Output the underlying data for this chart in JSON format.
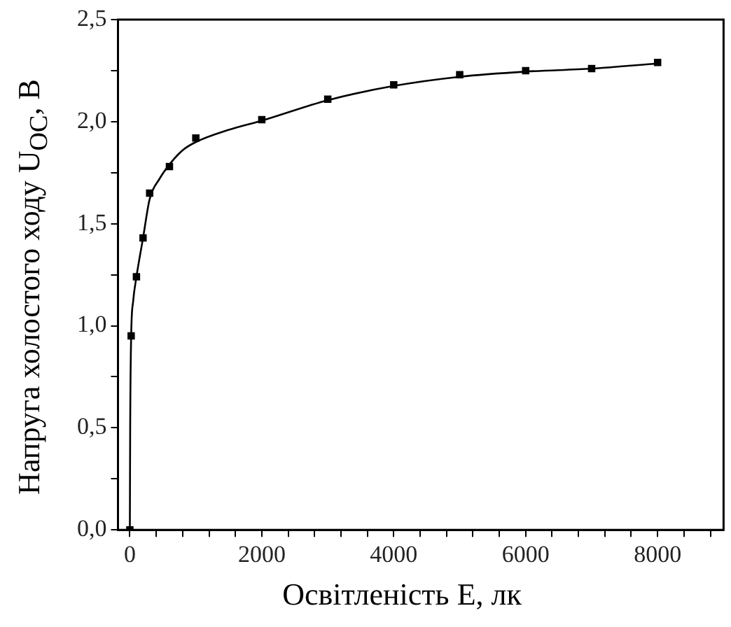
{
  "chart_data": {
    "type": "scatter",
    "xlabel": "Освітленість E, лк",
    "ylabel": "Напруга холостого ходу U$_{OC}$, В",
    "xlim": [
      -180,
      9000
    ],
    "ylim": [
      0,
      2.5
    ],
    "xticks": [
      0,
      {
        "value": 400,
        "label": null
      },
      {
        "value": 800,
        "label": null
      },
      {
        "value": 1200,
        "label": null
      },
      {
        "value": 1600,
        "label": null
      },
      2000,
      {
        "value": 2400,
        "label": null
      },
      {
        "value": 2800,
        "label": null
      },
      {
        "value": 3200,
        "label": null
      },
      {
        "value": 3600,
        "label": null
      },
      4000,
      {
        "value": 4400,
        "label": null
      },
      {
        "value": 4800,
        "label": null
      },
      {
        "value": 5200,
        "label": null
      },
      {
        "value": 5600,
        "label": null
      },
      6000,
      {
        "value": 6400,
        "label": null
      },
      {
        "value": 6800,
        "label": null
      },
      {
        "value": 7200,
        "label": null
      },
      {
        "value": 7600,
        "label": null
      },
      8000,
      {
        "value": 8400,
        "label": null
      },
      {
        "value": 8800,
        "label": null
      }
    ],
    "yticks": [
      {
        "value": 0,
        "label": "0,0"
      },
      {
        "value": 0.25,
        "label": null
      },
      {
        "value": 0.5,
        "label": "0,5"
      },
      {
        "value": 0.75,
        "label": null
      },
      {
        "value": 1,
        "label": "1,0"
      },
      {
        "value": 1.25,
        "label": null
      },
      {
        "value": 1.5,
        "label": "1,5"
      },
      {
        "value": 1.75,
        "label": null
      },
      {
        "value": 2,
        "label": "2,0"
      },
      {
        "value": 2.25,
        "label": null
      },
      {
        "value": 2.5,
        "label": "2,5"
      }
    ],
    "grid": false,
    "legend": false,
    "series": [
      {
        "marker": "square",
        "color": "#000000",
        "x": [
          0,
          20,
          100,
          200,
          300,
          600,
          1000,
          2000,
          3000,
          4000,
          5000,
          6000,
          7000,
          8000
        ],
        "values": [
          0,
          0.95,
          1.24,
          1.43,
          1.65,
          1.78,
          1.92,
          2.01,
          2.11,
          2.18,
          2.23,
          2.25,
          2.26,
          2.29
        ]
      },
      {
        "type": "line",
        "marker": "none",
        "line_style": "solid",
        "color": "#000000",
        "x": [
          0,
          5,
          20,
          50,
          100,
          200,
          300,
          450,
          600,
          800,
          1000,
          1500,
          2000,
          3000,
          4000,
          5000,
          6000,
          7000,
          8000
        ],
        "values": [
          0,
          0.5,
          0.95,
          1.12,
          1.24,
          1.43,
          1.62,
          1.72,
          1.79,
          1.86,
          1.9,
          1.96,
          2.005,
          2.105,
          2.175,
          2.22,
          2.245,
          2.26,
          2.285
        ]
      }
    ]
  }
}
